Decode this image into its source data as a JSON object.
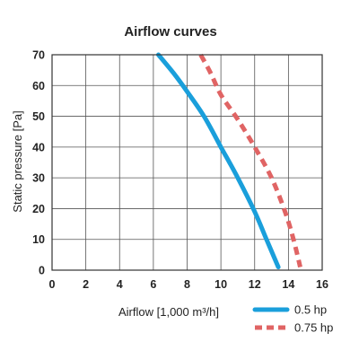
{
  "chart_data": {
    "type": "line",
    "title": "Airflow curves",
    "xlabel": "Airflow [1,000 m³/h]",
    "ylabel": "Static pressure  [Pa]",
    "xlim": [
      0,
      16
    ],
    "ylim": [
      0,
      70
    ],
    "x_ticks": [
      "0",
      "2",
      "4",
      "6",
      "8",
      "10",
      "12",
      "14",
      "16"
    ],
    "y_ticks": [
      "0",
      "10",
      "20",
      "30",
      "40",
      "50",
      "60",
      "70"
    ],
    "grid": true,
    "legend_position": "bottom-right",
    "series": [
      {
        "name": "0.5 hp",
        "color": "#1a9fdb",
        "style": "solid",
        "x": [
          6.3,
          7.2,
          8.0,
          9.0,
          10.0,
          11.0,
          12.0,
          12.7,
          13.4
        ],
        "y": [
          70,
          64,
          58,
          50,
          40,
          30,
          19,
          10,
          1
        ]
      },
      {
        "name": "0.75 hp",
        "color": "#e06464",
        "style": "dashed",
        "x": [
          8.8,
          9.4,
          10.0,
          11.0,
          12.0,
          13.0,
          13.8,
          14.3,
          14.7
        ],
        "y": [
          70,
          64,
          57,
          49,
          40,
          30,
          19,
          10,
          1
        ]
      }
    ]
  }
}
